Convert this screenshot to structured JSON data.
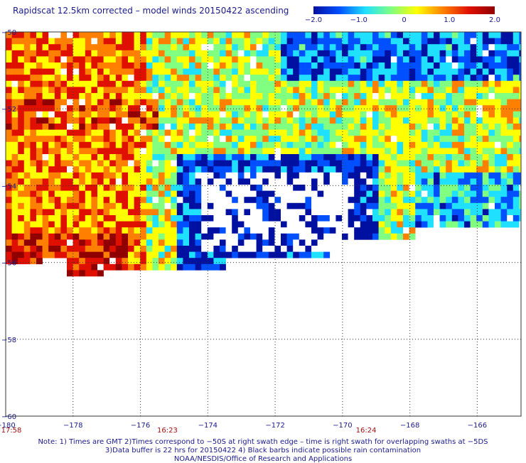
{
  "chart_data": {
    "type": "heatmap",
    "title": "Rapidscat 12.5km corrected – model winds 20150422 ascending",
    "colorbar": {
      "ticks": [
        "−2.0",
        "−1.0",
        "0",
        "1.0",
        "2.0"
      ],
      "range": [
        -2.0,
        2.0
      ],
      "colors": [
        "#0010a0",
        "#0050ff",
        "#20e0ff",
        "#80ff80",
        "#ffff00",
        "#ff8000",
        "#e01000",
        "#900000"
      ]
    },
    "x_ticks": [
      "−180",
      "−178",
      "−176",
      "−174",
      "−172",
      "−170",
      "−168",
      "−166"
    ],
    "x_values": [
      -180,
      -178,
      -176,
      -174,
      -172,
      -170,
      -168,
      -166
    ],
    "y_ticks": [
      "−50",
      "−52",
      "−54",
      "−56",
      "−58",
      "−60"
    ],
    "y_values": [
      -50,
      -52,
      -54,
      -56,
      -58,
      -60
    ],
    "xlim": [
      -180,
      -164.7
    ],
    "ylim": [
      -60,
      -50
    ],
    "grid": true,
    "time_labels": [
      {
        "text": "17:58",
        "x": -180
      },
      {
        "text": "16:23",
        "x": -175.2
      },
      {
        "text": "16:24",
        "x": -169.3
      }
    ],
    "note_lines": [
      "Note: 1) Times are GMT 2)Times correspond to −50S at right swath edge – time is right swath for overlapping swaths at −5DS",
      "3)Data buffer is 22 hrs for 20150422 4) Black barbs indicate possible rain contamination",
      "NOAA/NESDIS/Office of Research and Applications"
    ]
  }
}
